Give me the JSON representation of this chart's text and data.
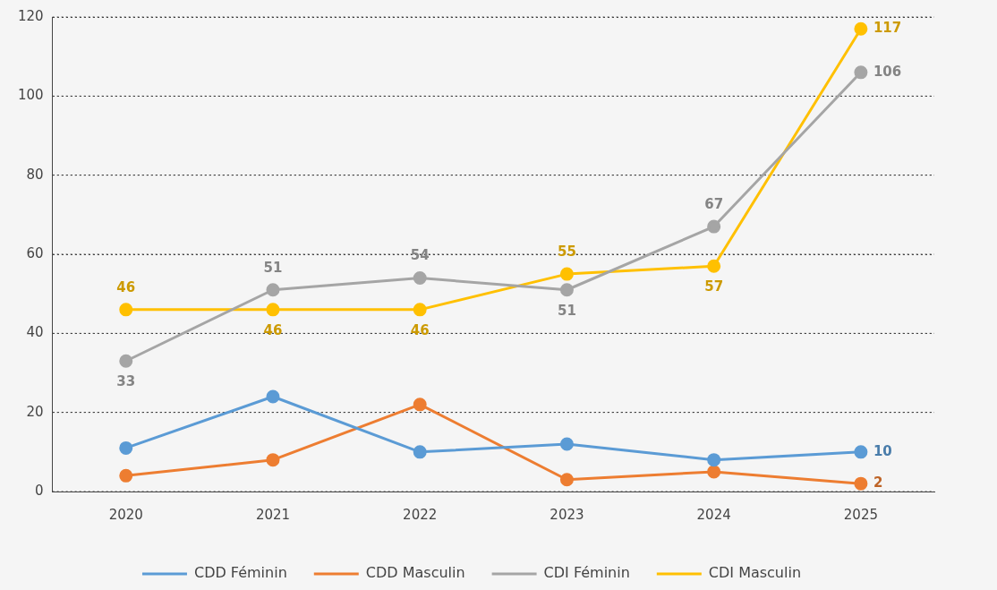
{
  "chart_data": {
    "type": "line",
    "categories": [
      "2020",
      "2021",
      "2022",
      "2023",
      "2024",
      "2025"
    ],
    "series": [
      {
        "name": "CDD Féminin",
        "color": "#5b9bd5",
        "values": [
          11,
          24,
          10,
          12,
          8,
          10
        ],
        "value_labels": [
          null,
          null,
          null,
          null,
          null,
          "10"
        ]
      },
      {
        "name": "CDD Masculin",
        "color": "#ed7d31",
        "values": [
          4,
          8,
          22,
          3,
          5,
          2
        ],
        "value_labels": [
          null,
          null,
          null,
          null,
          null,
          "2"
        ]
      },
      {
        "name": "CDI Féminin",
        "color": "#a5a5a5",
        "values": [
          33,
          51,
          54,
          51,
          67,
          106
        ],
        "value_labels": [
          "33",
          "51",
          "54",
          "51",
          "67",
          "106"
        ]
      },
      {
        "name": "CDI Masculin",
        "color": "#ffc000",
        "values": [
          46,
          46,
          46,
          55,
          57,
          117
        ],
        "value_labels": [
          "46",
          "46",
          "46",
          "55",
          "57",
          "117"
        ]
      }
    ],
    "ylim": [
      0,
      120
    ],
    "yticks": [
      0,
      20,
      40,
      60,
      80,
      100,
      120
    ],
    "grid": "y",
    "legend": "bottom",
    "marker": "circle",
    "line_style": "solid"
  }
}
